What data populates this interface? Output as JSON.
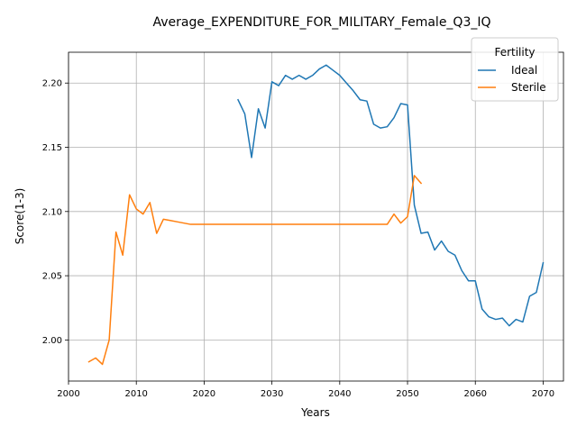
{
  "chart_data": {
    "type": "line",
    "title": "Average_EXPENDITURE_FOR_MILITARY_Female_Q3_IQ",
    "xlabel": "Years",
    "ylabel": "Score(1-3)",
    "xlim": [
      2000,
      2073
    ],
    "ylim": [
      1.968,
      2.224
    ],
    "xticks": [
      2000,
      2010,
      2020,
      2030,
      2040,
      2050,
      2060,
      2070
    ],
    "yticks": [
      2.0,
      2.05,
      2.1,
      2.15,
      2.2
    ],
    "xtick_labels": [
      "2000",
      "2010",
      "2020",
      "2030",
      "2040",
      "2050",
      "2060",
      "2070"
    ],
    "ytick_labels": [
      "2.00",
      "2.05",
      "2.10",
      "2.15",
      "2.20"
    ],
    "grid": true,
    "legend": {
      "title": "Fertility",
      "position": "top-right"
    },
    "series": [
      {
        "name": "Ideal",
        "color": "#1f77b4",
        "points": [
          [
            2025,
            2.187
          ],
          [
            2026,
            2.176
          ],
          [
            2027,
            2.142
          ],
          [
            2028,
            2.18
          ],
          [
            2029,
            2.165
          ],
          [
            2030,
            2.201
          ],
          [
            2031,
            2.198
          ],
          [
            2032,
            2.206
          ],
          [
            2033,
            2.203
          ],
          [
            2034,
            2.206
          ],
          [
            2035,
            2.203
          ],
          [
            2036,
            2.206
          ],
          [
            2037,
            2.211
          ],
          [
            2038,
            2.214
          ],
          [
            2039,
            2.21
          ],
          [
            2040,
            2.206
          ],
          [
            2041,
            2.2
          ],
          [
            2042,
            2.194
          ],
          [
            2043,
            2.187
          ],
          [
            2044,
            2.186
          ],
          [
            2045,
            2.168
          ],
          [
            2046,
            2.165
          ],
          [
            2047,
            2.166
          ],
          [
            2048,
            2.173
          ],
          [
            2049,
            2.184
          ],
          [
            2050,
            2.183
          ],
          [
            2051,
            2.105
          ],
          [
            2052,
            2.083
          ],
          [
            2053,
            2.084
          ],
          [
            2054,
            2.07
          ],
          [
            2055,
            2.077
          ],
          [
            2056,
            2.069
          ],
          [
            2057,
            2.066
          ],
          [
            2058,
            2.054
          ],
          [
            2059,
            2.046
          ],
          [
            2060,
            2.046
          ],
          [
            2061,
            2.024
          ],
          [
            2062,
            2.018
          ],
          [
            2063,
            2.016
          ],
          [
            2064,
            2.017
          ],
          [
            2065,
            2.011
          ],
          [
            2066,
            2.016
          ],
          [
            2067,
            2.014
          ],
          [
            2068,
            2.034
          ],
          [
            2069,
            2.037
          ],
          [
            2070,
            2.06
          ]
        ]
      },
      {
        "name": "Sterile",
        "color": "#ff7f0e",
        "points": [
          [
            2003,
            1.983
          ],
          [
            2004,
            1.986
          ],
          [
            2005,
            1.981
          ],
          [
            2006,
            2.0
          ],
          [
            2007,
            2.084
          ],
          [
            2008,
            2.066
          ],
          [
            2009,
            2.113
          ],
          [
            2010,
            2.102
          ],
          [
            2011,
            2.098
          ],
          [
            2012,
            2.107
          ],
          [
            2013,
            2.083
          ],
          [
            2014,
            2.094
          ],
          [
            2015,
            2.093
          ],
          [
            2016,
            2.092
          ],
          [
            2018,
            2.09
          ],
          [
            2020,
            2.09
          ],
          [
            2025,
            2.09
          ],
          [
            2030,
            2.09
          ],
          [
            2035,
            2.09
          ],
          [
            2040,
            2.09
          ],
          [
            2045,
            2.09
          ],
          [
            2047,
            2.09
          ],
          [
            2048,
            2.098
          ],
          [
            2049,
            2.091
          ],
          [
            2050,
            2.096
          ],
          [
            2051,
            2.128
          ],
          [
            2052,
            2.122
          ]
        ]
      }
    ]
  }
}
